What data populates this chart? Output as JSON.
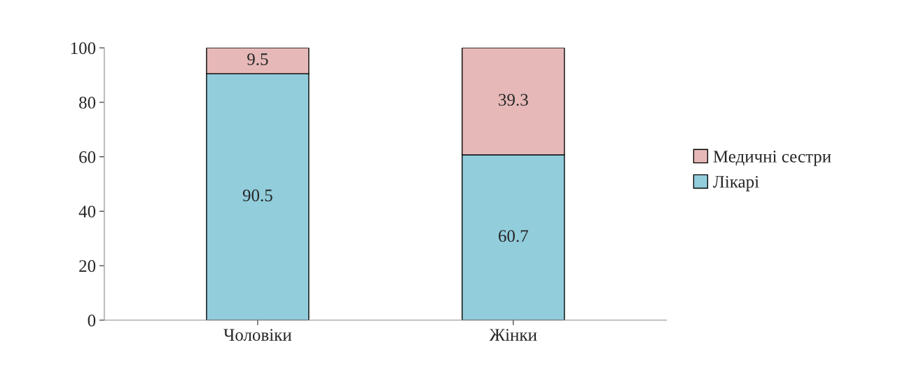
{
  "chart_data": {
    "type": "bar",
    "stacked": true,
    "categories": [
      "Чоловіки",
      "Жінки"
    ],
    "series": [
      {
        "name": "Лікарі",
        "color": "#92cddc",
        "values": [
          90.5,
          60.7
        ]
      },
      {
        "name": "Медичні сестри",
        "color": "#e6b9b8",
        "values": [
          9.5,
          39.3
        ]
      }
    ],
    "ylim": [
      0,
      100
    ],
    "yticks": [
      0,
      20,
      40,
      60,
      80,
      100
    ],
    "grid": false,
    "legend": "right",
    "data_labels": true
  }
}
